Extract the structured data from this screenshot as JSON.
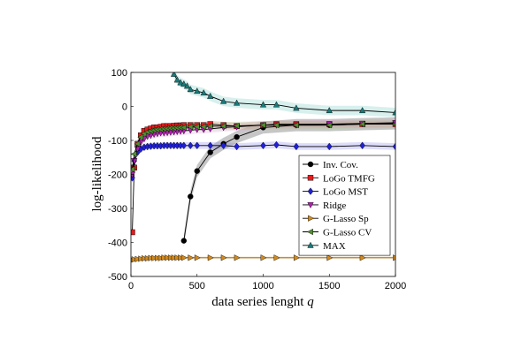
{
  "chart_data": {
    "type": "line",
    "xlabel": "data series lenght",
    "xlabel_var": "q",
    "ylabel": "log-likelihood",
    "xlim": [
      0,
      2000
    ],
    "ylim": [
      -500,
      100
    ],
    "x_ticks": [
      0,
      500,
      1000,
      1500,
      2000
    ],
    "y_ticks": [
      100,
      0,
      -100,
      -200,
      -300,
      -400,
      -500
    ],
    "grid": false,
    "legend_position": "lower-right",
    "series": [
      {
        "name": "Inv. Cov.",
        "color": "#000000",
        "marker": "circle",
        "x": [
          400,
          450,
          500,
          600,
          700,
          800,
          1000,
          1250,
          1500,
          1750,
          2000
        ],
        "y": [
          -395,
          -265,
          -190,
          -135,
          -110,
          -90,
          -62,
          -55,
          -55,
          -52,
          -50
        ],
        "band": 18,
        "band_color": "#333333"
      },
      {
        "name": "LoGo TMFG",
        "color": "#e41a1c",
        "marker": "square",
        "x": [
          10,
          25,
          50,
          75,
          100,
          125,
          150,
          175,
          200,
          225,
          250,
          275,
          300,
          325,
          350,
          375,
          400,
          450,
          500,
          550,
          600,
          700,
          800,
          1000,
          1100,
          1250,
          1500,
          1750,
          2000
        ],
        "y": [
          -370,
          -180,
          -110,
          -85,
          -72,
          -68,
          -65,
          -62,
          -62,
          -60,
          -58,
          -58,
          -58,
          -57,
          -56,
          -56,
          -55,
          -55,
          -55,
          -55,
          -52,
          -55,
          -58,
          -55,
          -52,
          -52,
          -52,
          -52,
          -52
        ],
        "band": 10,
        "band_color": "#f08080"
      },
      {
        "name": "LoGo MST",
        "color": "#1f1fd8",
        "marker": "diamond",
        "x": [
          10,
          25,
          50,
          75,
          100,
          125,
          150,
          175,
          200,
          225,
          250,
          275,
          300,
          325,
          350,
          375,
          400,
          450,
          500,
          600,
          700,
          800,
          1000,
          1100,
          1250,
          1500,
          1750,
          2000
        ],
        "y": [
          -210,
          -160,
          -135,
          -125,
          -120,
          -118,
          -117,
          -116,
          -116,
          -116,
          -115,
          -115,
          -115,
          -115,
          -115,
          -115,
          -115,
          -115,
          -115,
          -115,
          -115,
          -118,
          -115,
          -113,
          -118,
          -118,
          -115,
          -118
        ],
        "band": 10,
        "band_color": "#8080f0"
      },
      {
        "name": "Ridge",
        "color": "#b21fb2",
        "marker": "triangle-down",
        "x": [
          10,
          25,
          50,
          75,
          100,
          125,
          150,
          175,
          200,
          225,
          250,
          275,
          300,
          325,
          350,
          375,
          400,
          450,
          500,
          550,
          600,
          700,
          800,
          1000,
          1100,
          1250,
          1500,
          1750,
          2000
        ],
        "y": [
          -200,
          -160,
          -125,
          -105,
          -95,
          -88,
          -85,
          -82,
          -80,
          -78,
          -78,
          -77,
          -76,
          -75,
          -74,
          -73,
          -72,
          -70,
          -68,
          -68,
          -66,
          -62,
          -60,
          -55,
          -55,
          -55,
          -52,
          -50,
          -48
        ],
        "band": 12,
        "band_color": "#e0a0e0"
      },
      {
        "name": "G-Lasso Sp",
        "color": "#d28a1e",
        "marker": "triangle-right",
        "x": [
          10,
          25,
          50,
          75,
          100,
          125,
          150,
          175,
          200,
          225,
          250,
          275,
          300,
          325,
          350,
          375,
          400,
          450,
          500,
          600,
          700,
          800,
          1000,
          1100,
          1250,
          1500,
          1750,
          2000
        ],
        "y": [
          -452,
          -450,
          -449,
          -448,
          -447,
          -447,
          -446,
          -446,
          -446,
          -446,
          -445,
          -445,
          -445,
          -445,
          -445,
          -445,
          -445,
          -445,
          -445,
          -445,
          -445,
          -445,
          -445,
          -445,
          -445,
          -445,
          -445,
          -445
        ],
        "band": 4,
        "band_color": "#e8c080"
      },
      {
        "name": "G-Lasso CV",
        "color": "#4f8f2f",
        "marker": "triangle-left",
        "x": [
          10,
          25,
          50,
          75,
          100,
          125,
          150,
          175,
          200,
          225,
          250,
          275,
          300,
          325,
          350,
          375,
          400,
          450,
          500,
          550,
          600,
          700,
          800,
          1000,
          1100,
          1250,
          1500,
          1750,
          2000
        ],
        "y": [
          -185,
          -140,
          -110,
          -90,
          -80,
          -75,
          -72,
          -70,
          -68,
          -67,
          -66,
          -65,
          -64,
          -64,
          -63,
          -62,
          -62,
          -60,
          -60,
          -60,
          -58,
          -58,
          -57,
          -55,
          -55,
          -55,
          -55,
          -52,
          -52
        ],
        "band": 12,
        "band_color": "#a0d080"
      },
      {
        "name": "MAX",
        "color": "#1a7a7a",
        "marker": "triangle-up",
        "x": [
          325,
          350,
          375,
          400,
          425,
          450,
          500,
          550,
          600,
          700,
          800,
          1000,
          1100,
          1250,
          1500,
          1750,
          2000
        ],
        "y": [
          95,
          78,
          70,
          66,
          60,
          50,
          45,
          40,
          30,
          15,
          10,
          5,
          5,
          -5,
          -12,
          -12,
          -18
        ],
        "band": 14,
        "band_color": "#70c8c0"
      }
    ]
  }
}
